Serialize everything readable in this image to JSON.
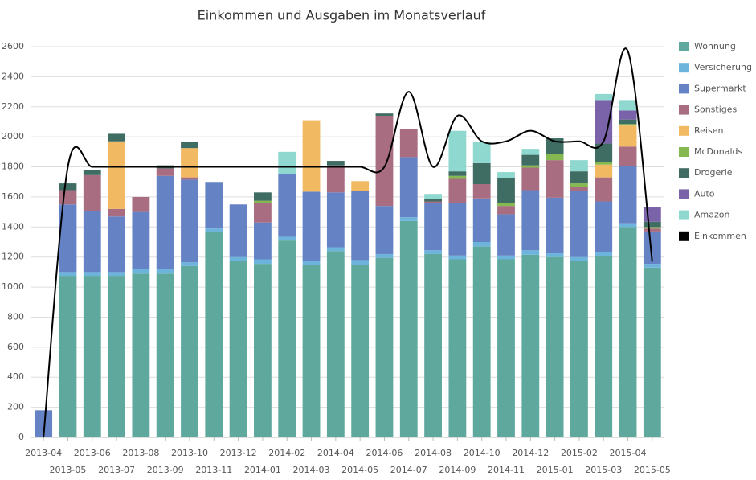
{
  "chart_data": {
    "type": "bar",
    "stacked": true,
    "title": "Einkommen und Ausgaben im Monatsverlauf",
    "categories": [
      "2013-04",
      "2013-05",
      "2013-06",
      "2013-07",
      "2013-08",
      "2013-09",
      "2013-10",
      "2013-11",
      "2013-12",
      "2014-01",
      "2014-02",
      "2014-03",
      "2014-04",
      "2014-05",
      "2014-06",
      "2014-07",
      "2014-08",
      "2014-09",
      "2014-10",
      "2014-11",
      "2014-12",
      "2015-01",
      "2015-02",
      "2015-03",
      "2015-04",
      "2015-05"
    ],
    "series": [
      {
        "name": "Wohnung",
        "color": "#5fa89d",
        "values": [
          0,
          1075,
          1075,
          1075,
          1090,
          1090,
          1140,
          1365,
          1175,
          1155,
          1310,
          1150,
          1240,
          1150,
          1195,
          1440,
          1220,
          1185,
          1270,
          1185,
          1215,
          1200,
          1175,
          1205,
          1400,
          1130
        ]
      },
      {
        "name": "Versicherung",
        "color": "#6db4dc",
        "values": [
          0,
          25,
          25,
          25,
          30,
          30,
          25,
          25,
          25,
          30,
          25,
          25,
          25,
          30,
          25,
          25,
          25,
          25,
          30,
          25,
          30,
          25,
          25,
          30,
          25,
          25
        ]
      },
      {
        "name": "Supermarkt",
        "color": "#6583c4",
        "values": [
          180,
          450,
          405,
          370,
          380,
          620,
          550,
          310,
          350,
          245,
          415,
          460,
          365,
          460,
          320,
          400,
          315,
          350,
          290,
          275,
          400,
          370,
          440,
          335,
          380,
          215
        ]
      },
      {
        "name": "Sonstiges",
        "color": "#a86d81",
        "values": [
          0,
          95,
          240,
          50,
          100,
          50,
          15,
          0,
          0,
          130,
          0,
          0,
          180,
          0,
          600,
          185,
          10,
          160,
          95,
          55,
          150,
          250,
          25,
          160,
          130,
          20
        ]
      },
      {
        "name": "Reisen",
        "color": "#f1b962",
        "values": [
          0,
          0,
          0,
          450,
          0,
          0,
          195,
          0,
          0,
          0,
          0,
          475,
          0,
          65,
          0,
          0,
          0,
          0,
          0,
          0,
          0,
          0,
          0,
          85,
          140,
          0
        ]
      },
      {
        "name": "McDonalds",
        "color": "#86b851",
        "values": [
          0,
          0,
          0,
          0,
          0,
          0,
          0,
          0,
          0,
          15,
          0,
          0,
          0,
          0,
          0,
          0,
          0,
          20,
          0,
          20,
          15,
          40,
          25,
          20,
          10,
          10
        ]
      },
      {
        "name": "Drogerie",
        "color": "#3f6c63",
        "values": [
          0,
          45,
          35,
          50,
          0,
          20,
          40,
          0,
          0,
          55,
          0,
          0,
          30,
          0,
          15,
          0,
          15,
          30,
          140,
          165,
          70,
          105,
          80,
          120,
          30,
          35
        ]
      },
      {
        "name": "Auto",
        "color": "#7b63a9",
        "values": [
          0,
          0,
          0,
          0,
          0,
          0,
          0,
          0,
          0,
          0,
          0,
          0,
          0,
          0,
          0,
          0,
          0,
          0,
          0,
          0,
          0,
          0,
          0,
          290,
          60,
          95
        ]
      },
      {
        "name": "Amazon",
        "color": "#8fd8d0",
        "values": [
          0,
          0,
          0,
          0,
          0,
          0,
          0,
          0,
          0,
          0,
          150,
          0,
          0,
          0,
          0,
          0,
          35,
          270,
          140,
          40,
          40,
          0,
          75,
          40,
          70,
          0
        ]
      },
      {
        "name": "Einkommen",
        "color": "#000000",
        "type": "line",
        "values": [
          0,
          1800,
          1800,
          1800,
          1800,
          1800,
          1800,
          1800,
          1800,
          1800,
          1800,
          1800,
          1800,
          1800,
          1800,
          2300,
          1800,
          2140,
          1970,
          1970,
          2040,
          1970,
          1970,
          1970,
          2570,
          1170
        ]
      }
    ],
    "ylim": [
      0,
      2700
    ],
    "yticks": [
      0,
      200,
      400,
      600,
      800,
      1000,
      1200,
      1400,
      1600,
      1800,
      2000,
      2200,
      2400,
      2600
    ],
    "grid": true,
    "legend": "right"
  }
}
